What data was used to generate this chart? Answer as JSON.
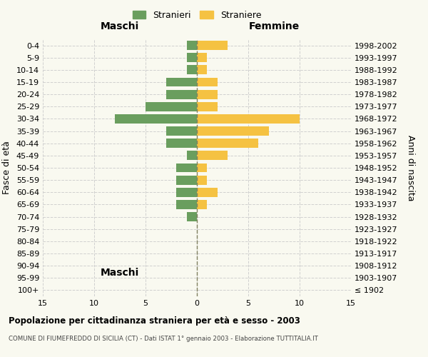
{
  "age_groups": [
    "100+",
    "95-99",
    "90-94",
    "85-89",
    "80-84",
    "75-79",
    "70-74",
    "65-69",
    "60-64",
    "55-59",
    "50-54",
    "45-49",
    "40-44",
    "35-39",
    "30-34",
    "25-29",
    "20-24",
    "15-19",
    "10-14",
    "5-9",
    "0-4"
  ],
  "birth_years": [
    "≤ 1902",
    "1903-1907",
    "1908-1912",
    "1913-1917",
    "1918-1922",
    "1923-1927",
    "1928-1932",
    "1933-1937",
    "1938-1942",
    "1943-1947",
    "1948-1952",
    "1953-1957",
    "1958-1962",
    "1963-1967",
    "1968-1972",
    "1973-1977",
    "1978-1982",
    "1983-1987",
    "1988-1992",
    "1993-1997",
    "1998-2002"
  ],
  "maschi": [
    0,
    0,
    0,
    0,
    0,
    0,
    1,
    2,
    2,
    2,
    2,
    1,
    3,
    3,
    8,
    5,
    3,
    3,
    1,
    1,
    1
  ],
  "femmine": [
    0,
    0,
    0,
    0,
    0,
    0,
    0,
    1,
    2,
    1,
    1,
    3,
    6,
    7,
    10,
    2,
    2,
    2,
    1,
    1,
    3
  ],
  "male_color": "#6a9e5e",
  "female_color": "#f5c242",
  "background_color": "#f9f9f0",
  "grid_color": "#cccccc",
  "center_line_color": "#808060",
  "xlim": 15,
  "title": "Popolazione per cittadinanza straniera per età e sesso - 2003",
  "subtitle": "COMUNE DI FIUMEFREDDO DI SICILIA (CT) - Dati ISTAT 1° gennaio 2003 - Elaborazione TUTTITALIA.IT",
  "legend_stranieri": "Stranieri",
  "legend_straniere": "Straniere",
  "left_label": "Maschi",
  "right_label": "Femmine",
  "ylabel_left": "Fasce di età",
  "ylabel_right": "Anni di nascita"
}
